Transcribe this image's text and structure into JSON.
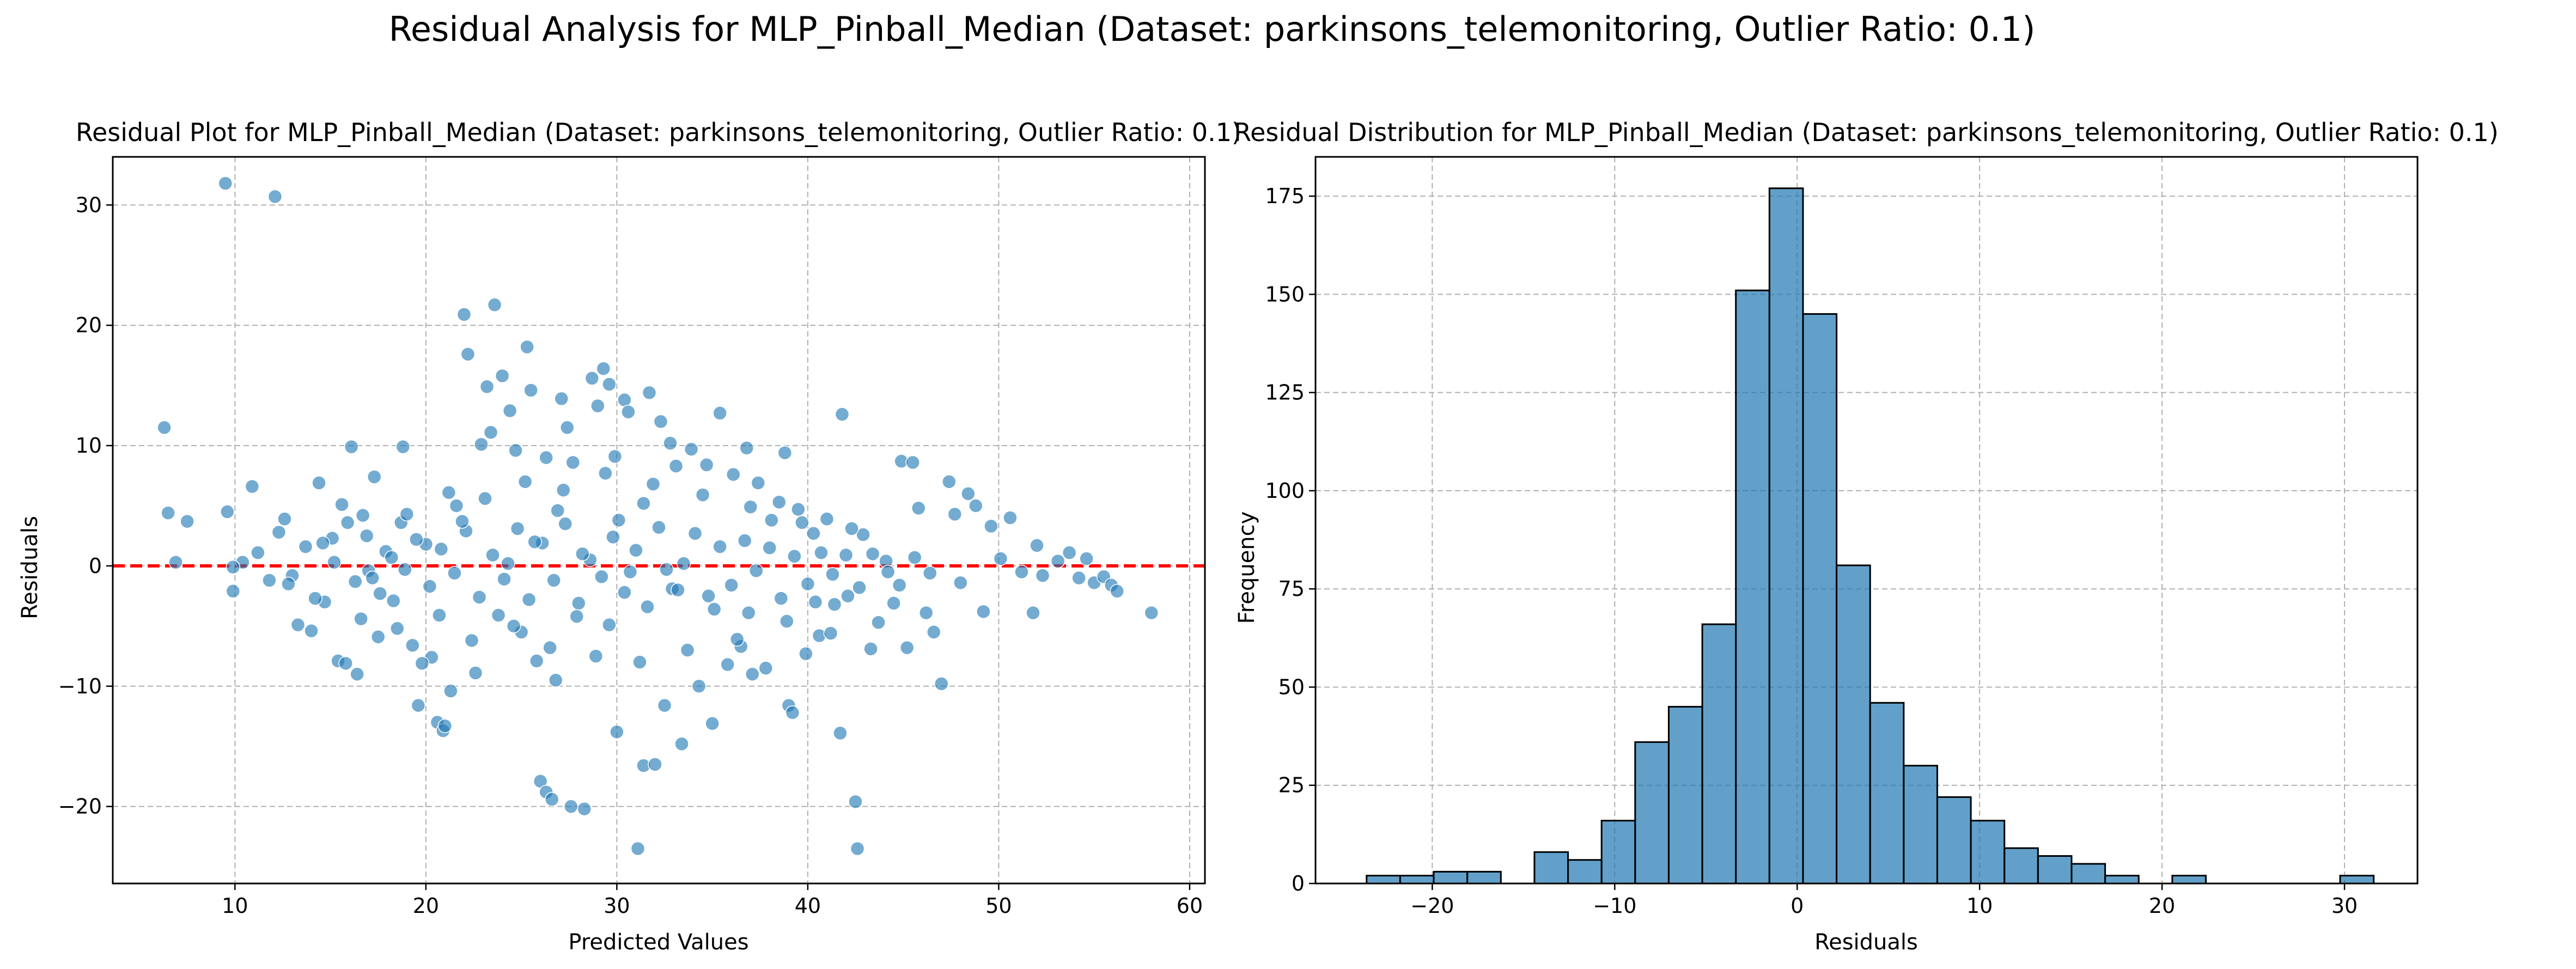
{
  "figure": {
    "suptitle": "Residual Analysis for MLP_Pinball_Median (Dataset: parkinsons_telemonitoring, Outlier Ratio: 0.1)"
  },
  "colors": {
    "point_fill": "#1f77b4",
    "hist_fill": "#1f77b4",
    "zero_line": "#ff0000",
    "grid": "#b0b0b0",
    "edge": "#000000"
  },
  "chart_data": [
    {
      "type": "scatter",
      "title": "Residual Plot for MLP_Pinball_Median (Dataset: parkinsons_telemonitoring, Outlier Ratio: 0.1)",
      "xlabel": "Predicted Values",
      "ylabel": "Residuals",
      "xlim": [
        3.6,
        60.8
      ],
      "ylim": [
        -26.4,
        34.0
      ],
      "xticks": [
        10,
        20,
        30,
        40,
        50,
        60
      ],
      "yticks": [
        -20,
        -10,
        0,
        10,
        20,
        30
      ],
      "grid": true,
      "reference_line": {
        "y": 0,
        "style": "dashed",
        "color": "#ff0000"
      },
      "series": [
        {
          "points": [
            [
              9.5,
              31.8
            ],
            [
              12.1,
              30.7
            ],
            [
              6.3,
              11.5
            ],
            [
              6.5,
              4.4
            ],
            [
              7.5,
              3.7
            ],
            [
              6.9,
              0.3
            ],
            [
              10.9,
              6.6
            ],
            [
              9.6,
              4.5
            ],
            [
              9.9,
              -2.1
            ],
            [
              10.4,
              0.3
            ],
            [
              11.2,
              1.1
            ],
            [
              11.8,
              -1.2
            ],
            [
              12.3,
              2.8
            ],
            [
              13.0,
              -0.8
            ],
            [
              12.6,
              3.9
            ],
            [
              13.3,
              -4.9
            ],
            [
              14.0,
              -5.4
            ],
            [
              13.7,
              1.6
            ],
            [
              14.4,
              6.9
            ],
            [
              14.7,
              -3.0
            ],
            [
              15.1,
              2.3
            ],
            [
              15.4,
              -7.9
            ],
            [
              15.8,
              -8.1
            ],
            [
              16.1,
              9.9
            ],
            [
              16.4,
              -9.0
            ],
            [
              16.7,
              4.2
            ],
            [
              17.0,
              -0.4
            ],
            [
              17.3,
              7.4
            ],
            [
              17.5,
              -5.9
            ],
            [
              17.9,
              1.2
            ],
            [
              18.3,
              -2.9
            ],
            [
              18.7,
              3.6
            ],
            [
              18.8,
              9.9
            ],
            [
              19.3,
              -6.6
            ],
            [
              19.6,
              -11.6
            ],
            [
              20.0,
              1.8
            ],
            [
              20.3,
              -7.6
            ],
            [
              20.6,
              -13.0
            ],
            [
              20.9,
              -13.7
            ],
            [
              21.0,
              -13.3
            ],
            [
              21.3,
              -10.4
            ],
            [
              21.6,
              5.0
            ],
            [
              22.0,
              20.9
            ],
            [
              22.2,
              17.6
            ],
            [
              22.6,
              -8.9
            ],
            [
              22.9,
              10.1
            ],
            [
              23.2,
              14.9
            ],
            [
              23.6,
              21.7
            ],
            [
              23.4,
              11.1
            ],
            [
              23.8,
              -4.1
            ],
            [
              24.0,
              15.8
            ],
            [
              24.4,
              12.9
            ],
            [
              24.7,
              9.6
            ],
            [
              25.0,
              -5.5
            ],
            [
              25.3,
              18.2
            ],
            [
              25.5,
              14.6
            ],
            [
              25.8,
              -7.9
            ],
            [
              26.0,
              -17.9
            ],
            [
              26.3,
              -18.8
            ],
            [
              26.6,
              -19.4
            ],
            [
              26.3,
              9.0
            ],
            [
              26.8,
              -9.5
            ],
            [
              27.1,
              13.9
            ],
            [
              27.4,
              11.5
            ],
            [
              27.7,
              8.6
            ],
            [
              27.6,
              -20.0
            ],
            [
              28.3,
              -20.2
            ],
            [
              28.7,
              15.6
            ],
            [
              29.0,
              13.3
            ],
            [
              29.3,
              16.4
            ],
            [
              29.6,
              15.1
            ],
            [
              29.9,
              9.1
            ],
            [
              30.0,
              -13.8
            ],
            [
              30.4,
              13.8
            ],
            [
              30.6,
              12.8
            ],
            [
              31.1,
              -23.5
            ],
            [
              31.4,
              -16.6
            ],
            [
              31.7,
              14.4
            ],
            [
              32.0,
              -16.5
            ],
            [
              32.3,
              12.0
            ],
            [
              32.5,
              -11.6
            ],
            [
              32.8,
              10.2
            ],
            [
              33.1,
              8.3
            ],
            [
              33.4,
              -14.8
            ],
            [
              33.9,
              9.7
            ],
            [
              34.3,
              -10.0
            ],
            [
              34.7,
              8.4
            ],
            [
              35.0,
              -13.1
            ],
            [
              35.4,
              12.7
            ],
            [
              35.8,
              -8.2
            ],
            [
              36.1,
              7.6
            ],
            [
              36.5,
              -6.7
            ],
            [
              36.8,
              9.8
            ],
            [
              37.1,
              -9.0
            ],
            [
              37.4,
              6.9
            ],
            [
              37.8,
              -8.5
            ],
            [
              38.1,
              3.8
            ],
            [
              38.5,
              5.3
            ],
            [
              38.8,
              9.4
            ],
            [
              39.0,
              -11.6
            ],
            [
              39.2,
              -12.2
            ],
            [
              39.5,
              4.7
            ],
            [
              39.9,
              -7.3
            ],
            [
              40.3,
              2.7
            ],
            [
              40.6,
              -5.8
            ],
            [
              41.0,
              3.9
            ],
            [
              41.4,
              -3.2
            ],
            [
              41.8,
              12.6
            ],
            [
              41.7,
              -13.9
            ],
            [
              42.1,
              -2.5
            ],
            [
              42.5,
              -19.6
            ],
            [
              42.6,
              -23.5
            ],
            [
              42.9,
              2.6
            ],
            [
              43.3,
              -6.9
            ],
            [
              43.7,
              -4.7
            ],
            [
              44.1,
              0.4
            ],
            [
              44.5,
              -3.1
            ],
            [
              44.9,
              8.7
            ],
            [
              45.2,
              -6.8
            ],
            [
              45.5,
              8.6
            ],
            [
              45.8,
              4.8
            ],
            [
              46.2,
              -3.9
            ],
            [
              46.6,
              -5.5
            ],
            [
              47.0,
              -9.8
            ],
            [
              47.4,
              7.0
            ],
            [
              47.7,
              4.3
            ],
            [
              48.0,
              -1.4
            ],
            [
              48.4,
              6.0
            ],
            [
              48.8,
              5.0
            ],
            [
              49.2,
              -3.8
            ],
            [
              49.6,
              3.3
            ],
            [
              50.1,
              0.6
            ],
            [
              50.6,
              4.0
            ],
            [
              51.2,
              -0.5
            ],
            [
              51.8,
              -3.9
            ],
            [
              52.0,
              1.7
            ],
            [
              52.3,
              -0.8
            ],
            [
              53.1,
              0.4
            ],
            [
              53.7,
              1.1
            ],
            [
              54.2,
              -1.0
            ],
            [
              54.6,
              0.6
            ],
            [
              55.0,
              -1.4
            ],
            [
              55.5,
              -0.9
            ],
            [
              55.9,
              -1.6
            ],
            [
              56.2,
              -2.1
            ],
            [
              58.0,
              -3.9
            ],
            [
              9.9,
              -0.1
            ],
            [
              12.8,
              -1.5
            ],
            [
              14.6,
              1.9
            ],
            [
              15.2,
              0.3
            ],
            [
              15.9,
              3.6
            ],
            [
              16.3,
              -1.3
            ],
            [
              16.9,
              2.5
            ],
            [
              17.6,
              -2.3
            ],
            [
              18.2,
              0.7
            ],
            [
              18.9,
              -0.3
            ],
            [
              19.5,
              2.2
            ],
            [
              20.2,
              -1.7
            ],
            [
              20.8,
              1.4
            ],
            [
              21.5,
              -0.6
            ],
            [
              22.1,
              2.9
            ],
            [
              22.8,
              -2.6
            ],
            [
              23.5,
              0.9
            ],
            [
              24.1,
              -1.1
            ],
            [
              24.8,
              3.1
            ],
            [
              25.4,
              -2.8
            ],
            [
              26.1,
              1.9
            ],
            [
              26.7,
              -1.2
            ],
            [
              27.3,
              3.5
            ],
            [
              28.0,
              -3.1
            ],
            [
              28.6,
              0.5
            ],
            [
              29.2,
              -0.9
            ],
            [
              29.8,
              2.4
            ],
            [
              30.4,
              -2.2
            ],
            [
              31.0,
              1.3
            ],
            [
              31.6,
              -3.4
            ],
            [
              32.2,
              3.2
            ],
            [
              32.9,
              -1.9
            ],
            [
              33.5,
              0.2
            ],
            [
              34.1,
              2.7
            ],
            [
              34.8,
              -2.5
            ],
            [
              35.4,
              1.6
            ],
            [
              36.0,
              -1.6
            ],
            [
              36.7,
              2.1
            ],
            [
              37.3,
              -0.4
            ],
            [
              38.0,
              1.5
            ],
            [
              38.6,
              -2.7
            ],
            [
              39.3,
              0.8
            ],
            [
              40.0,
              -1.5
            ],
            [
              40.7,
              1.1
            ],
            [
              41.3,
              -0.7
            ],
            [
              42.0,
              0.9
            ],
            [
              42.7,
              -1.8
            ],
            [
              43.4,
              1.0
            ],
            [
              44.2,
              -0.5
            ],
            [
              44.8,
              -1.6
            ],
            [
              45.6,
              0.7
            ],
            [
              46.4,
              -0.6
            ],
            [
              14.2,
              -2.7
            ],
            [
              16.6,
              -4.4
            ],
            [
              18.5,
              -5.2
            ],
            [
              20.7,
              -4.1
            ],
            [
              22.4,
              -6.2
            ],
            [
              24.6,
              -5.0
            ],
            [
              26.5,
              -6.8
            ],
            [
              28.9,
              -7.5
            ],
            [
              31.2,
              -8.0
            ],
            [
              33.7,
              -7.0
            ],
            [
              36.3,
              -6.1
            ],
            [
              38.9,
              -4.6
            ],
            [
              41.2,
              -5.6
            ],
            [
              15.6,
              5.1
            ],
            [
              19.0,
              4.3
            ],
            [
              21.2,
              6.1
            ],
            [
              23.1,
              5.6
            ],
            [
              25.2,
              7.0
            ],
            [
              27.2,
              6.3
            ],
            [
              29.4,
              7.7
            ],
            [
              31.9,
              6.8
            ],
            [
              34.5,
              5.9
            ],
            [
              37.0,
              4.9
            ],
            [
              39.7,
              3.6
            ],
            [
              42.3,
              3.1
            ],
            [
              25.7,
              2.0
            ],
            [
              28.2,
              1.0
            ],
            [
              30.1,
              3.8
            ],
            [
              32.6,
              -0.3
            ],
            [
              35.1,
              -3.6
            ],
            [
              27.9,
              -4.2
            ],
            [
              24.3,
              0.2
            ],
            [
              30.7,
              -0.5
            ],
            [
              33.2,
              -2.0
            ],
            [
              29.6,
              -4.9
            ],
            [
              26.9,
              4.6
            ],
            [
              31.4,
              5.2
            ],
            [
              36.9,
              -3.9
            ],
            [
              40.4,
              -3.0
            ],
            [
              19.8,
              -8.1
            ],
            [
              21.9,
              3.7
            ],
            [
              17.2,
              -1.0
            ]
          ]
        }
      ]
    },
    {
      "type": "bar",
      "title": "Residual Distribution for MLP_Pinball_Median (Dataset: parkinsons_telemonitoring, Outlier Ratio: 0.1)",
      "xlabel": "Residuals",
      "ylabel": "Frequency",
      "xlim": [
        -26.4,
        34.0
      ],
      "ylim": [
        0,
        185
      ],
      "xticks": [
        -20,
        -10,
        0,
        10,
        20,
        30
      ],
      "yticks": [
        0,
        25,
        50,
        75,
        100,
        125,
        150,
        175
      ],
      "grid": true,
      "bin_start": -23.6,
      "bin_width": 1.84,
      "values": [
        2,
        2,
        3,
        3,
        0,
        8,
        6,
        16,
        36,
        45,
        66,
        151,
        177,
        145,
        81,
        46,
        30,
        22,
        16,
        9,
        7,
        5,
        2,
        0,
        2,
        0,
        0,
        0,
        0,
        2
      ]
    }
  ]
}
